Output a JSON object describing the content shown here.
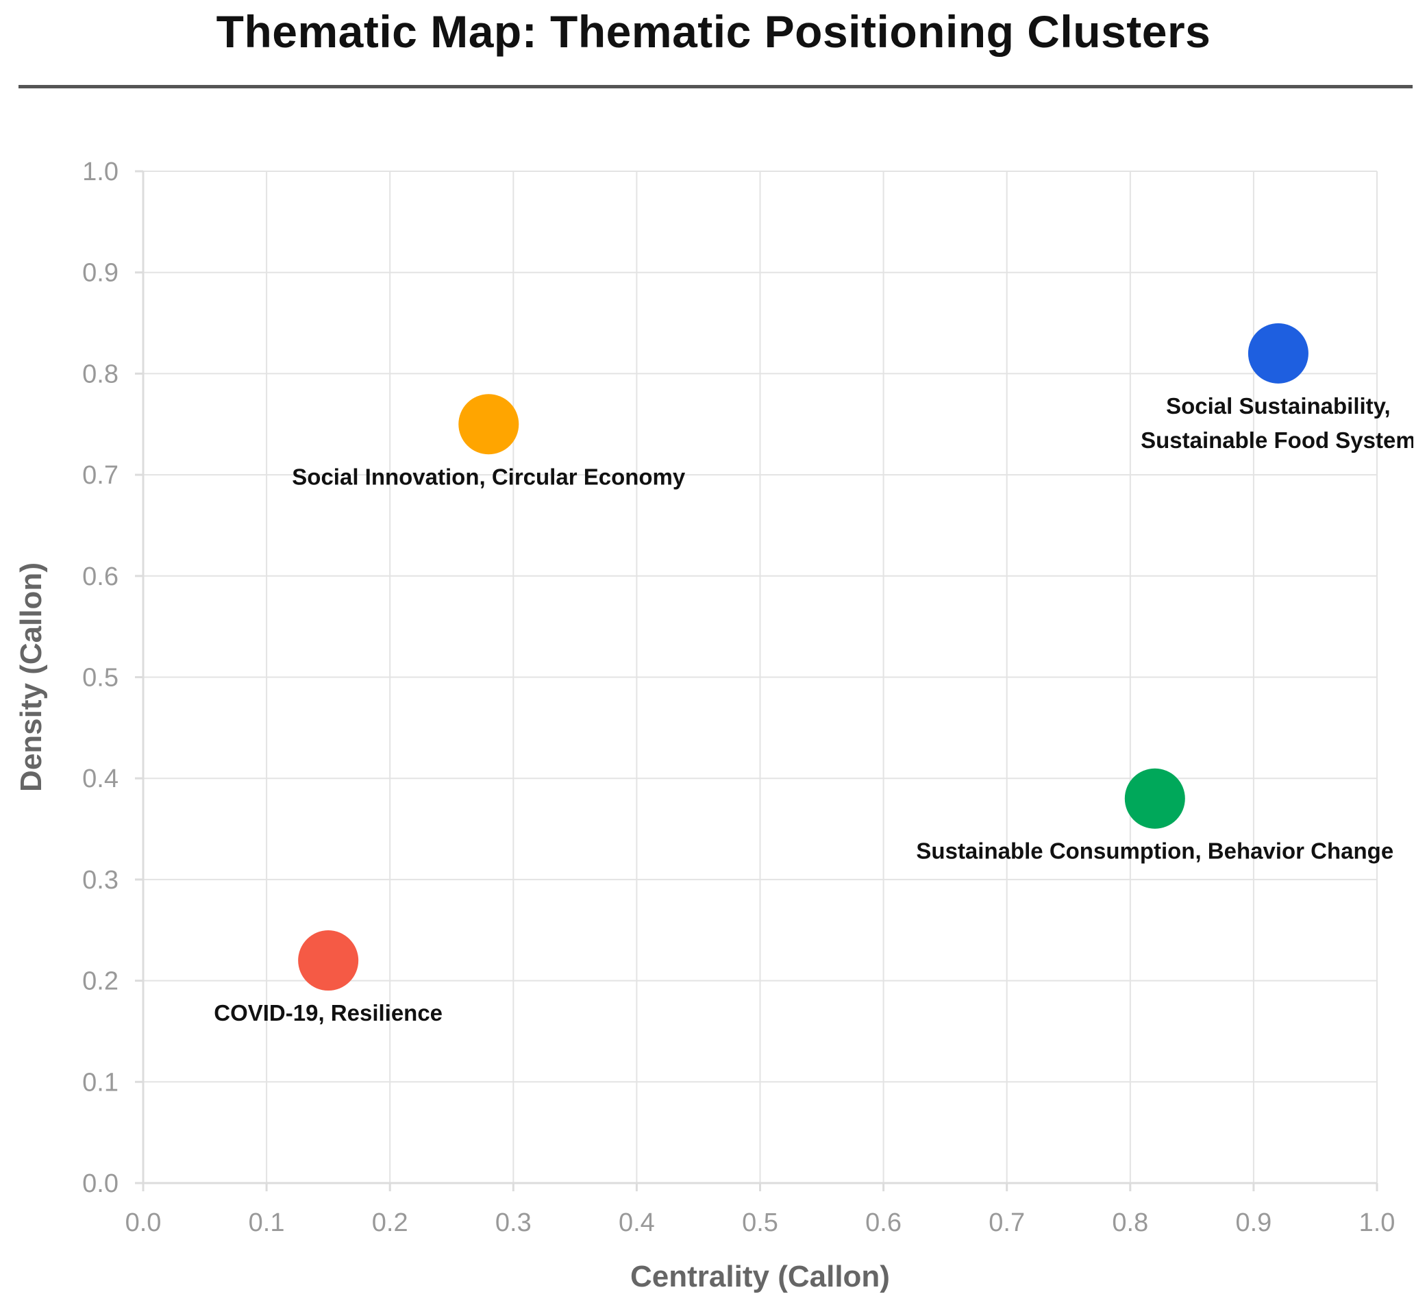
{
  "chart_data": {
    "type": "scatter",
    "title": "Thematic Map: Thematic Positioning Clusters",
    "xlabel": "Centrality (Callon)",
    "ylabel": "Density (Callon)",
    "xlim": [
      0.0,
      1.0
    ],
    "ylim": [
      0.0,
      1.0
    ],
    "x_ticks": [
      "0.0",
      "0.1",
      "0.2",
      "0.3",
      "0.4",
      "0.5",
      "0.6",
      "0.7",
      "0.8",
      "0.9",
      "1.0"
    ],
    "y_ticks": [
      "0.0",
      "0.1",
      "0.2",
      "0.3",
      "0.4",
      "0.5",
      "0.6",
      "0.7",
      "0.8",
      "0.9",
      "1.0"
    ],
    "grid": true,
    "legend": false,
    "points": [
      {
        "label": "Social Innovation, Circular Economy",
        "label_lines": [
          "Social Innovation, Circular Economy"
        ],
        "x": 0.28,
        "y": 0.75,
        "color": "#FFA500"
      },
      {
        "label": "Social Sustainability, Sustainable Food System",
        "label_lines": [
          "Social Sustainability,",
          "Sustainable Food System"
        ],
        "x": 0.92,
        "y": 0.82,
        "color": "#1E5FE0"
      },
      {
        "label": "Sustainable Consumption, Behavior Change",
        "label_lines": [
          "Sustainable Consumption, Behavior Change"
        ],
        "x": 0.82,
        "y": 0.38,
        "color": "#00A85A"
      },
      {
        "label": "COVID-19, Resilience",
        "label_lines": [
          "COVID-19, Resilience"
        ],
        "x": 0.15,
        "y": 0.22,
        "color": "#F55A45"
      }
    ]
  }
}
